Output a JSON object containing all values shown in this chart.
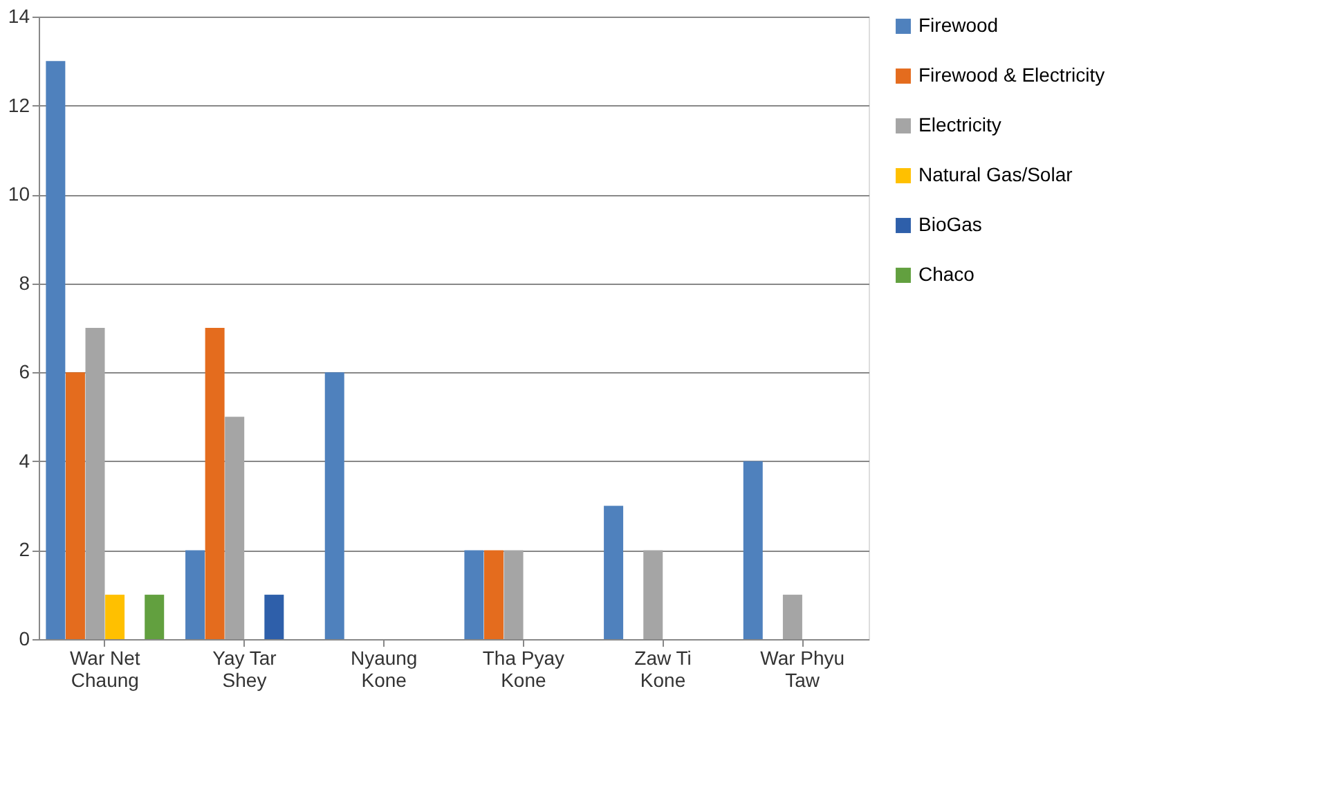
{
  "chart_data": {
    "type": "bar",
    "categories": [
      "War Net Chaung",
      "Yay Tar Shey",
      "Nyaung Kone",
      "Tha Pyay Kone",
      "Zaw Ti Kone",
      "War Phyu Taw"
    ],
    "series": [
      {
        "name": "Firewood",
        "color": "#4f81bd",
        "values": [
          13,
          2,
          6,
          2,
          3,
          4
        ]
      },
      {
        "name": "Firewood & Electricity",
        "color": "#e46c1e",
        "values": [
          6,
          7,
          null,
          2,
          null,
          null
        ]
      },
      {
        "name": "Electricity",
        "color": "#a5a5a5",
        "values": [
          7,
          5,
          null,
          2,
          2,
          1
        ]
      },
      {
        "name": "Natural Gas/Solar",
        "color": "#ffc000",
        "values": [
          1,
          null,
          null,
          null,
          null,
          null
        ]
      },
      {
        "name": "BioGas",
        "color": "#2e5faa",
        "values": [
          null,
          1,
          null,
          null,
          null,
          null
        ]
      },
      {
        "name": "Chaco",
        "color": "#62a03f",
        "values": [
          1,
          null,
          null,
          null,
          null,
          null
        ]
      }
    ],
    "ylim": [
      0,
      14
    ],
    "yticks": [
      0,
      2,
      4,
      6,
      8,
      10,
      12,
      14
    ],
    "grid": "y",
    "legend": "right"
  }
}
